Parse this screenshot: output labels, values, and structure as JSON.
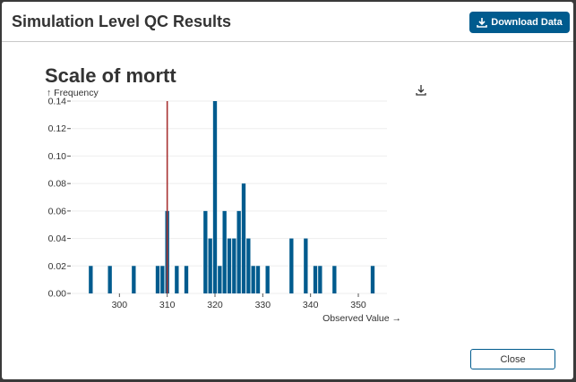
{
  "modal": {
    "title": "Simulation Level QC Results",
    "download_label": "Download Data",
    "close_label": "Close",
    "accent_color": "#005b8e"
  },
  "chart_data": {
    "type": "bar",
    "title": "Scale of mortt",
    "xlabel": "Observed Value →",
    "ylabel": "↑ Frequency",
    "xlim": [
      290,
      356
    ],
    "ylim": [
      0,
      0.14
    ],
    "xticks": [
      300,
      310,
      320,
      330,
      340,
      350
    ],
    "yticks": [
      0.0,
      0.02,
      0.04,
      0.06,
      0.08,
      0.1,
      0.12,
      0.14
    ],
    "ytick_labels": [
      "0.00",
      "0.02",
      "0.04",
      "0.06",
      "0.08",
      "0.10",
      "0.12",
      "0.14"
    ],
    "bin_width": 1,
    "bins": [
      294,
      298,
      303,
      308,
      309,
      310,
      312,
      314,
      318,
      319,
      320,
      321,
      322,
      323,
      324,
      325,
      326,
      327,
      328,
      329,
      331,
      336,
      339,
      341,
      342,
      345,
      353
    ],
    "values": [
      0.02,
      0.02,
      0.02,
      0.02,
      0.02,
      0.06,
      0.02,
      0.02,
      0.06,
      0.04,
      0.14,
      0.02,
      0.06,
      0.04,
      0.04,
      0.06,
      0.08,
      0.04,
      0.02,
      0.02,
      0.02,
      0.04,
      0.04,
      0.02,
      0.02,
      0.02,
      0.02
    ],
    "reference_line": 310,
    "bar_color": "#005b8e",
    "reference_color": "#a83232",
    "grid": "horizontal"
  }
}
